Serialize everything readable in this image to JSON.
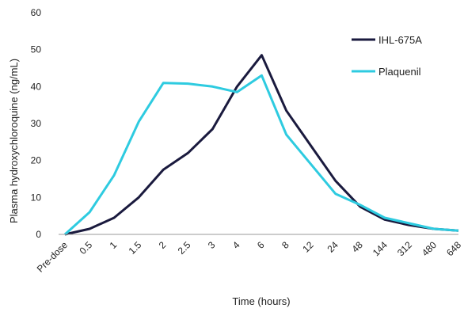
{
  "chart_data": {
    "type": "line",
    "x": [
      "Pre-dose",
      "0.5",
      "1",
      "1.5",
      "2",
      "2.5",
      "3",
      "4",
      "6",
      "8",
      "12",
      "24",
      "48",
      "144",
      "312",
      "480",
      "648"
    ],
    "series": [
      {
        "name": "IHL-675A",
        "color": "#1a1a3e",
        "values": [
          0,
          1.5,
          4.5,
          10,
          17.5,
          22,
          28.5,
          40,
          48.5,
          33.5,
          24,
          14.5,
          7.5,
          4,
          2.5,
          1.5,
          1
        ]
      },
      {
        "name": "Plaquenil",
        "color": "#2ecbe0",
        "values": [
          0,
          6,
          16,
          30.5,
          41,
          40.8,
          40,
          38.5,
          43,
          27,
          19,
          11,
          8,
          4.5,
          3,
          1.5,
          1
        ]
      }
    ],
    "xlabel": "Time (hours)",
    "ylabel": "Plasma hydroxychloroquine (ng/mL)",
    "ylim": [
      0,
      60
    ],
    "yticks": [
      0,
      10,
      20,
      30,
      40,
      50,
      60
    ],
    "grid": false,
    "legend_position": "top-right"
  }
}
